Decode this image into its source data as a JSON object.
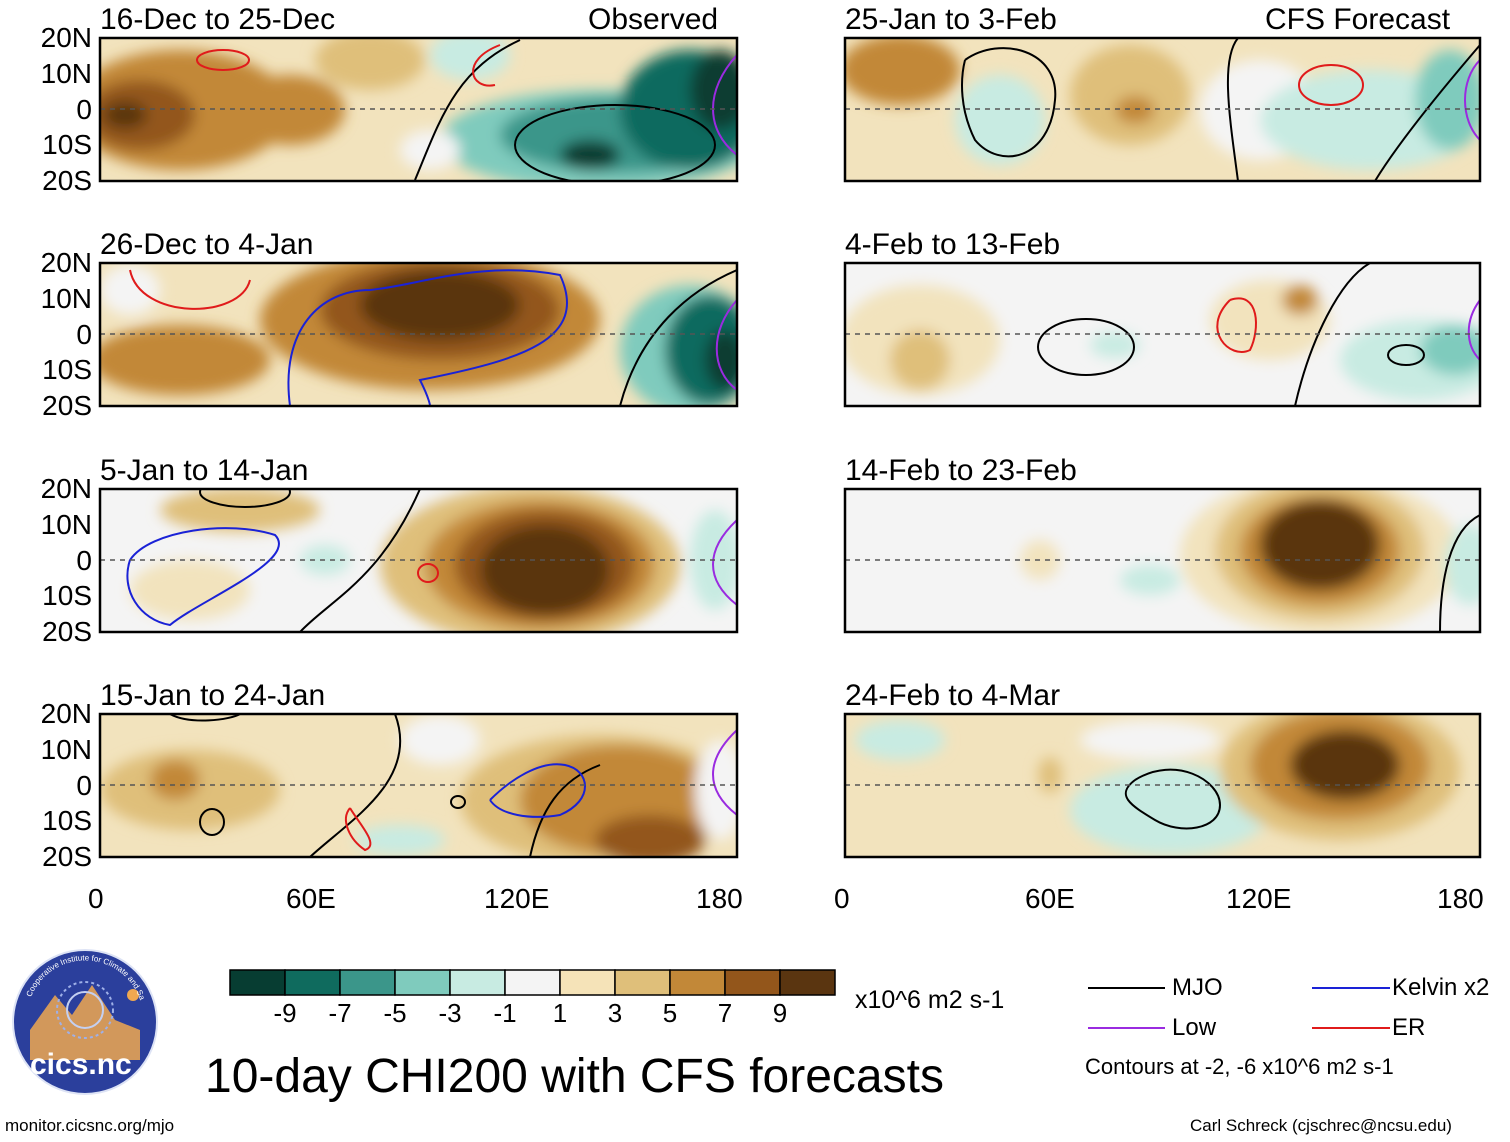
{
  "figure_title": "10-day CHI200 with CFS forecasts",
  "observed_label": "Observed",
  "forecast_label": "CFS Forecast",
  "panels": {
    "p1": {
      "period": "16-Dec to 25-Dec",
      "source": "Observed"
    },
    "p2": {
      "period": "26-Dec to 4-Jan",
      "source": "Observed"
    },
    "p3": {
      "period": "5-Jan to 14-Jan",
      "source": "Observed"
    },
    "p4": {
      "period": "15-Jan to 24-Jan",
      "source": "Observed"
    },
    "p5": {
      "period": "25-Jan to 3-Feb",
      "source": "CFS Forecast"
    },
    "p6": {
      "period": "4-Feb to 13-Feb",
      "source": "CFS Forecast"
    },
    "p7": {
      "period": "14-Feb to 23-Feb",
      "source": "CFS Forecast"
    },
    "p8": {
      "period": "24-Feb to 4-Mar",
      "source": "CFS Forecast"
    }
  },
  "lat_labels": [
    "20N",
    "10N",
    "0",
    "10S",
    "20S"
  ],
  "lon_labels": [
    "0",
    "60E",
    "120E",
    "180"
  ],
  "colorbar": {
    "ticks": [
      "-9",
      "-7",
      "-5",
      "-3",
      "-1",
      "1",
      "3",
      "5",
      "7",
      "9"
    ],
    "units": "x10^6 m2 s-1",
    "colors": [
      "#073d32",
      "#0f6b5e",
      "#3b968a",
      "#7fcbbd",
      "#c8ebe2",
      "#f4f4f4",
      "#f5e3b8",
      "#dfbf7a",
      "#c28838",
      "#93561b",
      "#5a3510"
    ]
  },
  "legend": {
    "mjo": {
      "label": "MJO",
      "color": "#000000"
    },
    "kelvin": {
      "label": "Kelvin x2",
      "color": "#1a22d6"
    },
    "low": {
      "label": "Low",
      "color": "#9a2be0"
    },
    "er": {
      "label": "ER",
      "color": "#e01b1b"
    },
    "note": "Contours at -2, -6 x10^6 m2 s-1"
  },
  "logo_text": "cics.nc",
  "logo_arc_text": "Cooperative Institute for Climate and Satellites",
  "footer_left": "monitor.cicsnc.org/mjo",
  "footer_right": "Carl Schreck (cjschrec@ncsu.edu)"
}
